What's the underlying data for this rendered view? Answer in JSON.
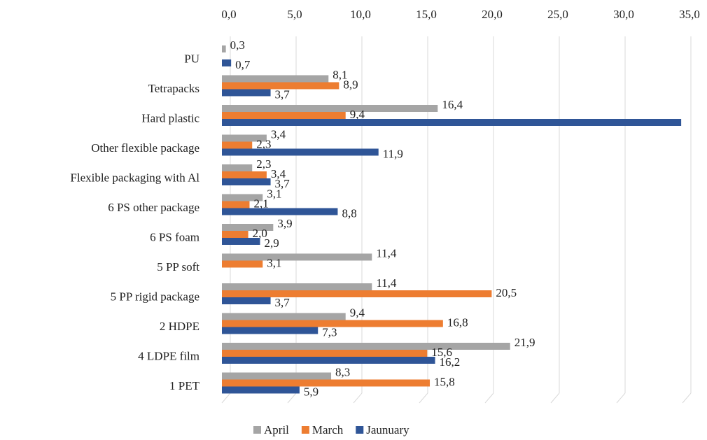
{
  "chart_data": {
    "type": "bar",
    "orientation": "horizontal",
    "categories": [
      "PU",
      "Tetrapacks",
      "Hard plastic",
      "Other flexible package",
      "Flexible packaging with Al",
      "6 PS other package",
      "6 PS foam",
      "5 PP soft",
      "5 PP rigid package",
      "2 HDPE",
      "4 LDPE film",
      "1 PET"
    ],
    "series": [
      {
        "name": "April",
        "color": "#a5a5a5",
        "values": [
          0.3,
          8.1,
          16.4,
          3.4,
          2.3,
          3.1,
          3.9,
          11.4,
          11.4,
          9.4,
          21.9,
          8.3
        ],
        "value_labels": [
          "0,3",
          "8,1",
          "16,4",
          "3,4",
          "2,3",
          "3,1",
          "3,9",
          "11,4",
          "11,4",
          "9,4",
          "21,9",
          "8,3"
        ]
      },
      {
        "name": "March",
        "color": "#ed7d31",
        "values": [
          null,
          8.9,
          9.4,
          2.3,
          3.4,
          2.1,
          2.0,
          3.1,
          20.5,
          16.8,
          15.6,
          15.8
        ],
        "value_labels": [
          null,
          "8,9",
          "9,4",
          "2,3",
          "3,4",
          "2,1",
          "2,0",
          "3,1",
          "20,5",
          "16,8",
          "15,6",
          "15,8"
        ]
      },
      {
        "name": "Jaunuary",
        "color": "#2f5597",
        "values": [
          0.7,
          3.7,
          34.9,
          11.9,
          3.7,
          8.8,
          2.9,
          null,
          3.7,
          7.3,
          16.2,
          5.9
        ],
        "value_labels": [
          "0,7",
          "3,7",
          null,
          "11,9",
          "3,7",
          "8,8",
          "2,9",
          null,
          "3,7",
          "7,3",
          "16,2",
          "5,9"
        ]
      }
    ],
    "xlim": [
      0,
      35
    ],
    "xticks": [
      {
        "value": 0,
        "label": "0,0"
      },
      {
        "value": 5,
        "label": "5,0"
      },
      {
        "value": 10,
        "label": "10,0"
      },
      {
        "value": 15,
        "label": "15,0"
      },
      {
        "value": 20,
        "label": "20,0"
      },
      {
        "value": 25,
        "label": "25,0"
      },
      {
        "value": 30,
        "label": "30,0"
      },
      {
        "value": 35,
        "label": "35,0"
      }
    ],
    "grid": true,
    "legend": "bottom"
  }
}
